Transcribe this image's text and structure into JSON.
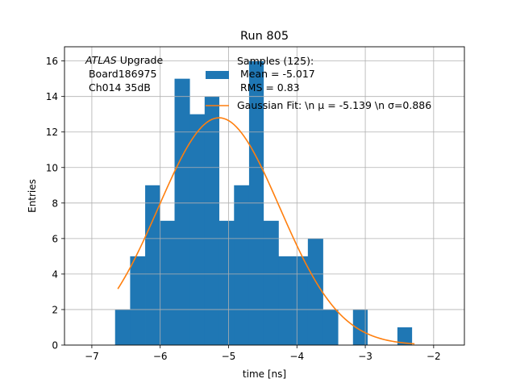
{
  "chart_data": {
    "type": "bar",
    "title": "Run 805",
    "xlabel": "time [ns]",
    "ylabel": "Entries",
    "xlim": [
      -7.4,
      -1.55
    ],
    "ylim": [
      0,
      16.8
    ],
    "xticks": [
      -7,
      -6,
      -5,
      -4,
      -3,
      -2
    ],
    "xtick_labels": [
      "−7",
      "−6",
      "−5",
      "−4",
      "−3",
      "−2"
    ],
    "yticks": [
      0,
      2,
      4,
      6,
      8,
      10,
      12,
      14,
      16
    ],
    "ytick_labels": [
      "0",
      "2",
      "4",
      "6",
      "8",
      "10",
      "12",
      "14",
      "16"
    ],
    "grid": true,
    "legend_position": "top-right",
    "annotation": {
      "italic": "ATLAS",
      "rest": " Upgrade",
      "line2": " Board186975",
      "line3": " Ch014 35dB"
    },
    "histogram": {
      "name_lines": [
        "Samples (125):",
        " Mean = -5.017",
        " RMS = 0.83"
      ],
      "color": "#1f77b4",
      "bin_edges": [
        -6.66,
        -6.44,
        -6.22,
        -6.01,
        -5.79,
        -5.57,
        -5.35,
        -5.14,
        -4.92,
        -4.7,
        -4.49,
        -4.27,
        -4.05,
        -3.84,
        -3.62,
        -3.4,
        -3.18,
        -2.97,
        -2.75,
        -2.53,
        -2.32,
        -2.1
      ],
      "values": [
        2,
        5,
        9,
        7,
        15,
        13,
        14,
        7,
        9,
        16,
        7,
        5,
        5,
        6,
        2,
        0,
        2,
        0,
        0,
        1,
        0
      ]
    },
    "fit": {
      "name": "Gaussian Fit: \\n μ = -5.139 \\n σ=0.886",
      "color": "#ff7f0e",
      "mu": -5.139,
      "sigma": 0.886,
      "amplitude": 12.8,
      "x_range": [
        -6.62,
        -2.28
      ]
    }
  }
}
